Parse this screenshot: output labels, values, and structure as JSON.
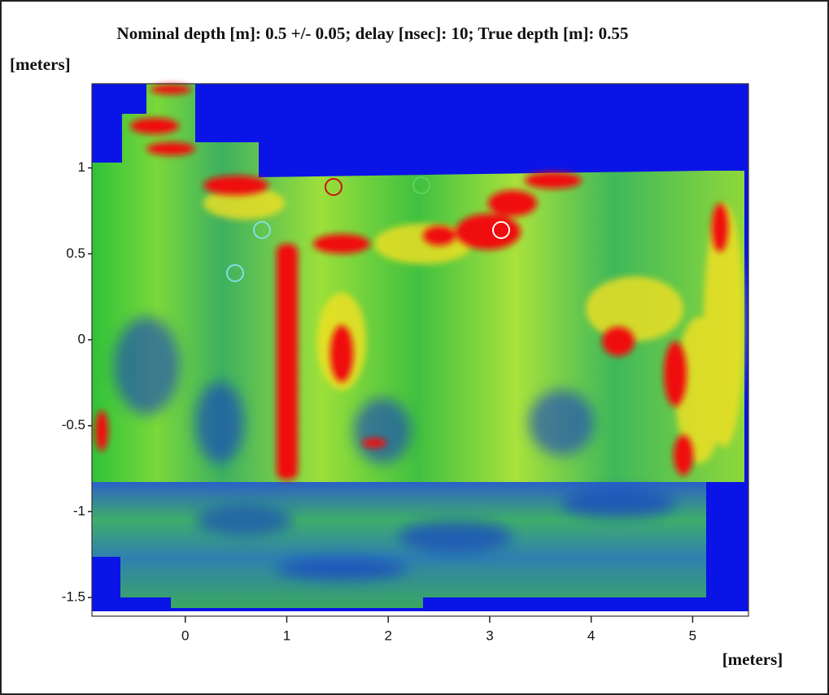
{
  "chart_data": {
    "type": "heatmap",
    "title": "Nominal depth [m]: 0.5 +/- 0.05;   delay [nsec]: 10;   True depth [m]: 0.55",
    "y_label": "[meters]",
    "x_label": "[meters]",
    "xlim": [
      -0.92,
      5.55
    ],
    "ylim": [
      -1.58,
      1.49
    ],
    "xticks": [
      0,
      1,
      2,
      3,
      4,
      5
    ],
    "yticks": [
      1,
      0.5,
      0,
      -0.5,
      -1,
      -1.5
    ]
  }
}
